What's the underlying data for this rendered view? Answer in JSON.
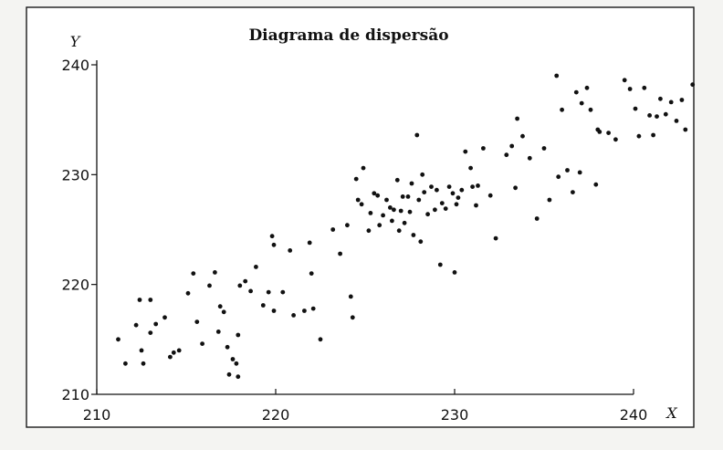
{
  "chart_data": {
    "type": "scatter",
    "title": "Diagrama de dispersão",
    "xlabel": "X",
    "ylabel": "Y",
    "xlim": [
      210,
      240
    ],
    "ylim": [
      210,
      240
    ],
    "x_ticks": [
      210,
      220,
      230,
      240
    ],
    "y_ticks": [
      210,
      220,
      230,
      240
    ],
    "grid": false,
    "series": [
      {
        "points": [
          [
            211.2,
            215.0
          ],
          [
            211.6,
            212.8
          ],
          [
            212.2,
            216.3
          ],
          [
            212.4,
            218.6
          ],
          [
            212.5,
            214.0
          ],
          [
            212.6,
            212.8
          ],
          [
            213.0,
            218.6
          ],
          [
            213.0,
            215.6
          ],
          [
            213.3,
            216.4
          ],
          [
            213.8,
            217.0
          ],
          [
            214.1,
            213.4
          ],
          [
            214.3,
            213.8
          ],
          [
            214.6,
            214.0
          ],
          [
            215.1,
            219.2
          ],
          [
            215.4,
            221.0
          ],
          [
            215.6,
            216.6
          ],
          [
            215.9,
            214.6
          ],
          [
            216.3,
            219.9
          ],
          [
            216.6,
            221.1
          ],
          [
            216.8,
            215.7
          ],
          [
            216.9,
            218.0
          ],
          [
            217.1,
            217.5
          ],
          [
            217.3,
            214.3
          ],
          [
            217.4,
            211.8
          ],
          [
            217.6,
            213.2
          ],
          [
            217.8,
            212.8
          ],
          [
            217.9,
            215.4
          ],
          [
            217.9,
            211.6
          ],
          [
            218.0,
            219.9
          ],
          [
            218.3,
            220.3
          ],
          [
            218.6,
            219.4
          ],
          [
            218.9,
            221.6
          ],
          [
            219.3,
            218.1
          ],
          [
            219.6,
            219.3
          ],
          [
            219.8,
            224.4
          ],
          [
            219.9,
            223.6
          ],
          [
            219.9,
            217.6
          ],
          [
            220.4,
            219.3
          ],
          [
            220.8,
            223.1
          ],
          [
            221.0,
            217.2
          ],
          [
            221.6,
            217.6
          ],
          [
            221.9,
            223.8
          ],
          [
            222.0,
            221.0
          ],
          [
            222.1,
            217.8
          ],
          [
            222.5,
            215.0
          ],
          [
            223.2,
            225.0
          ],
          [
            223.6,
            222.8
          ],
          [
            224.0,
            225.4
          ],
          [
            224.2,
            218.9
          ],
          [
            224.3,
            217.0
          ],
          [
            224.5,
            229.6
          ],
          [
            224.6,
            227.7
          ],
          [
            224.8,
            227.3
          ],
          [
            224.9,
            230.6
          ],
          [
            225.2,
            224.9
          ],
          [
            225.3,
            226.5
          ],
          [
            225.5,
            228.3
          ],
          [
            225.7,
            228.1
          ],
          [
            225.8,
            225.4
          ],
          [
            226.0,
            226.3
          ],
          [
            226.2,
            227.7
          ],
          [
            226.4,
            227.0
          ],
          [
            226.5,
            225.8
          ],
          [
            226.6,
            226.8
          ],
          [
            226.8,
            229.5
          ],
          [
            226.9,
            224.9
          ],
          [
            227.0,
            226.7
          ],
          [
            227.1,
            228.0
          ],
          [
            227.2,
            225.6
          ],
          [
            227.4,
            228.0
          ],
          [
            227.5,
            226.6
          ],
          [
            227.6,
            229.2
          ],
          [
            227.7,
            224.5
          ],
          [
            227.9,
            233.6
          ],
          [
            228.0,
            227.7
          ],
          [
            228.1,
            223.9
          ],
          [
            228.2,
            230.0
          ],
          [
            228.3,
            228.4
          ],
          [
            228.5,
            226.4
          ],
          [
            228.7,
            228.9
          ],
          [
            228.9,
            226.8
          ],
          [
            229.0,
            228.6
          ],
          [
            229.2,
            221.8
          ],
          [
            229.3,
            227.4
          ],
          [
            229.5,
            226.9
          ],
          [
            229.7,
            228.9
          ],
          [
            229.9,
            228.3
          ],
          [
            230.0,
            221.1
          ],
          [
            230.1,
            227.3
          ],
          [
            230.2,
            227.9
          ],
          [
            230.4,
            228.6
          ],
          [
            230.6,
            232.1
          ],
          [
            230.9,
            230.6
          ],
          [
            231.0,
            228.9
          ],
          [
            231.2,
            227.2
          ],
          [
            231.3,
            229.0
          ],
          [
            231.6,
            232.4
          ],
          [
            232.0,
            228.1
          ],
          [
            232.3,
            224.2
          ],
          [
            232.9,
            231.8
          ],
          [
            233.2,
            232.6
          ],
          [
            233.4,
            228.8
          ],
          [
            233.5,
            235.1
          ],
          [
            233.8,
            233.5
          ],
          [
            234.2,
            231.5
          ],
          [
            234.6,
            226.0
          ],
          [
            235.0,
            232.4
          ],
          [
            235.3,
            227.7
          ],
          [
            235.7,
            239.0
          ],
          [
            235.8,
            229.8
          ],
          [
            236.0,
            235.9
          ],
          [
            236.3,
            230.4
          ],
          [
            236.6,
            228.4
          ],
          [
            236.8,
            237.5
          ],
          [
            237.0,
            230.2
          ],
          [
            237.1,
            236.5
          ],
          [
            237.4,
            237.9
          ],
          [
            237.6,
            235.9
          ],
          [
            237.9,
            229.1
          ],
          [
            238.0,
            234.1
          ],
          [
            238.1,
            233.9
          ],
          [
            238.6,
            233.8
          ],
          [
            239.0,
            233.2
          ],
          [
            239.5,
            238.6
          ],
          [
            239.8,
            237.8
          ],
          [
            240.1,
            236.0
          ],
          [
            240.3,
            233.5
          ],
          [
            240.6,
            237.9
          ],
          [
            240.9,
            235.4
          ],
          [
            241.1,
            233.6
          ],
          [
            241.3,
            235.3
          ],
          [
            241.5,
            236.9
          ],
          [
            241.8,
            235.5
          ],
          [
            242.1,
            236.6
          ],
          [
            242.4,
            234.9
          ],
          [
            242.7,
            236.8
          ],
          [
            242.9,
            234.1
          ],
          [
            243.3,
            238.2
          ]
        ]
      }
    ]
  }
}
